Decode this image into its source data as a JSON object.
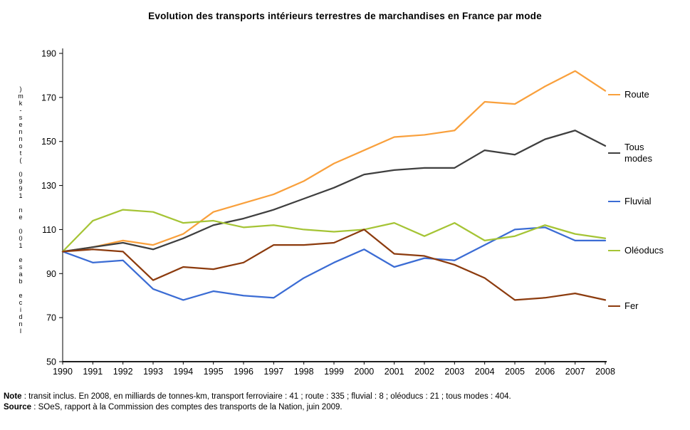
{
  "chart_data": {
    "type": "line",
    "title": "Evolution des transports intérieurs terrestres de marchandises en France par mode",
    "ylabel": "Indice base 100 en 1990 (tonnes-km)",
    "xlabel": "",
    "ylim": [
      50,
      190
    ],
    "yticks": [
      50,
      70,
      90,
      110,
      130,
      150,
      170,
      190
    ],
    "grid": false,
    "legend_position": "right",
    "x": [
      1990,
      1991,
      1992,
      1993,
      1994,
      1995,
      1996,
      1997,
      1998,
      1999,
      2000,
      2001,
      2002,
      2003,
      2004,
      2005,
      2006,
      2007,
      2008
    ],
    "series": [
      {
        "name": "Route",
        "color": "#F9A03C",
        "values": [
          100,
          102,
          105,
          103,
          108,
          118,
          122,
          126,
          132,
          140,
          146,
          152,
          153,
          155,
          168,
          167,
          175,
          182,
          173
        ]
      },
      {
        "name": "Tous modes",
        "color": "#3F3F3F",
        "values": [
          100,
          102,
          104,
          101,
          106,
          112,
          115,
          119,
          124,
          129,
          135,
          137,
          138,
          138,
          146,
          144,
          151,
          155,
          148
        ]
      },
      {
        "name": "Fluvial",
        "color": "#3B6CD4",
        "values": [
          100,
          95,
          96,
          83,
          78,
          82,
          80,
          79,
          88,
          95,
          101,
          93,
          97,
          96,
          103,
          110,
          111,
          105,
          105
        ]
      },
      {
        "name": "Oléoducs",
        "color": "#A5C435",
        "values": [
          100,
          114,
          119,
          118,
          113,
          114,
          111,
          112,
          110,
          109,
          110,
          113,
          107,
          113,
          105,
          107,
          112,
          108,
          106
        ]
      },
      {
        "name": "Fer",
        "color": "#8C3B0E",
        "values": [
          100,
          101,
          100,
          87,
          93,
          92,
          95,
          103,
          103,
          104,
          110,
          99,
          98,
          94,
          88,
          78,
          79,
          81,
          78
        ]
      }
    ]
  },
  "note": {
    "label": "Note",
    "text": " : transit inclus. En 2008, en milliards de tonnes-km, transport ferroviaire : 41 ; route : 335 ; fluvial : 8 ; oléoducs : 21 ; tous modes : 404."
  },
  "source": {
    "label": "Source",
    "text": " : SOeS, rapport à la Commission des comptes des transports de la Nation, juin 2009."
  }
}
